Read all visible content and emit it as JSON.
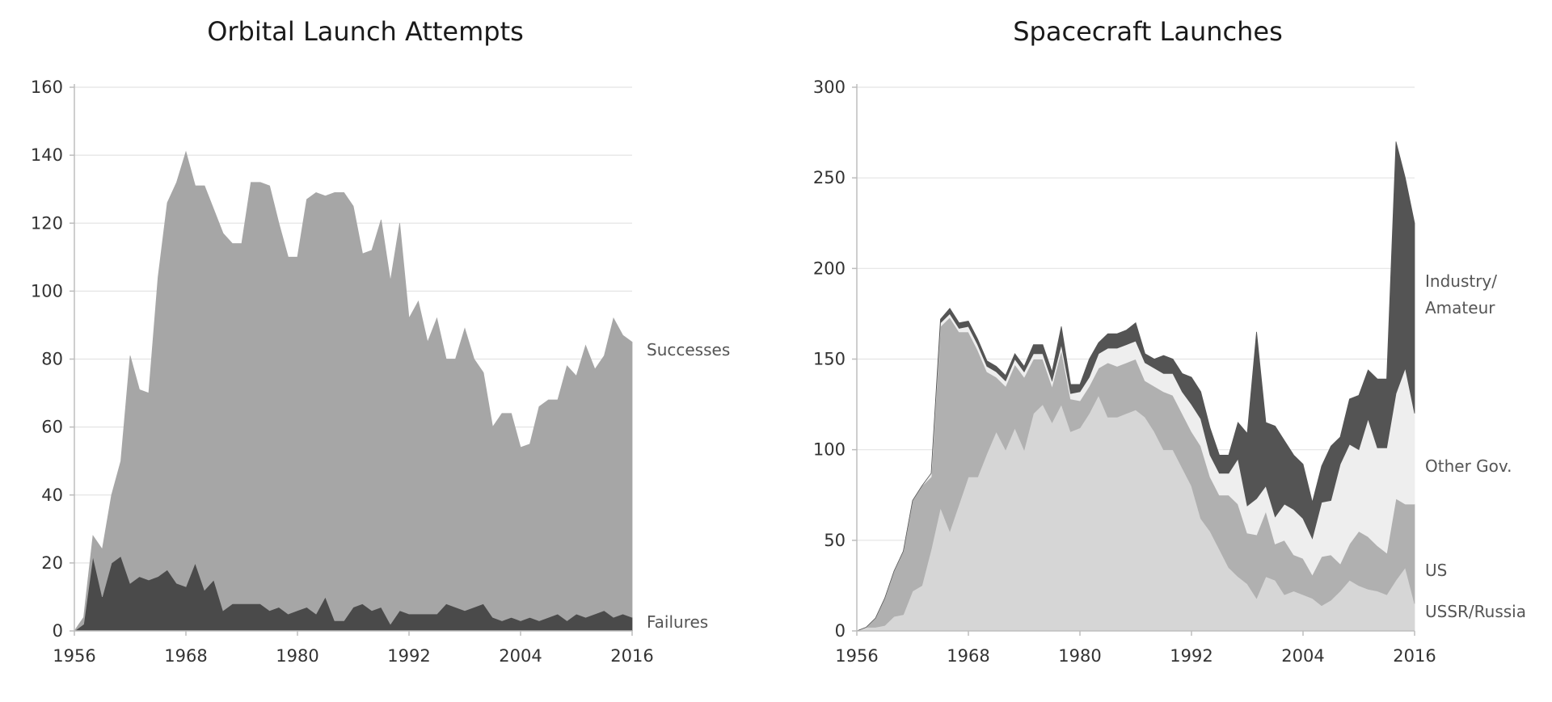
{
  "chart_data": [
    {
      "type": "area",
      "title": "Orbital Launch Attempts",
      "stacked": true,
      "xlim": [
        1956,
        2016
      ],
      "ylim": [
        0,
        160
      ],
      "yticks": [
        0,
        20,
        40,
        60,
        80,
        100,
        120,
        140,
        160
      ],
      "xticks": [
        1956,
        1968,
        1980,
        1992,
        2004,
        2016
      ],
      "grid": true,
      "legend": "series labels at right end of areas",
      "x": [
        1956,
        1957,
        1958,
        1959,
        1960,
        1961,
        1962,
        1963,
        1964,
        1965,
        1966,
        1967,
        1968,
        1969,
        1970,
        1971,
        1972,
        1973,
        1974,
        1975,
        1976,
        1977,
        1978,
        1979,
        1980,
        1981,
        1982,
        1983,
        1984,
        1985,
        1986,
        1987,
        1988,
        1989,
        1990,
        1991,
        1992,
        1993,
        1994,
        1995,
        1996,
        1997,
        1998,
        1999,
        2000,
        2001,
        2002,
        2003,
        2004,
        2005,
        2006,
        2007,
        2008,
        2009,
        2010,
        2011,
        2012,
        2013,
        2014,
        2015,
        2016
      ],
      "series": [
        {
          "name": "Failures",
          "color": "#4a4a4a",
          "values": [
            0,
            2,
            22,
            10,
            20,
            22,
            14,
            16,
            15,
            16,
            18,
            14,
            13,
            20,
            12,
            15,
            6,
            8,
            8,
            8,
            8,
            6,
            7,
            5,
            6,
            7,
            5,
            10,
            3,
            3,
            7,
            8,
            6,
            7,
            2,
            6,
            5,
            5,
            5,
            5,
            8,
            7,
            6,
            7,
            8,
            4,
            3,
            4,
            3,
            4,
            3,
            4,
            5,
            3,
            5,
            4,
            5,
            6,
            4,
            5,
            4
          ]
        },
        {
          "name": "Successes",
          "color": "#a6a6a6",
          "values": [
            0,
            2,
            6,
            14,
            20,
            28,
            67,
            55,
            55,
            88,
            108,
            118,
            128,
            111,
            119,
            109,
            111,
            106,
            106,
            124,
            124,
            125,
            113,
            105,
            104,
            120,
            124,
            118,
            126,
            126,
            118,
            103,
            106,
            114,
            101,
            114,
            87,
            92,
            80,
            87,
            72,
            73,
            83,
            73,
            68,
            56,
            61,
            60,
            51,
            51,
            63,
            64,
            63,
            75,
            70,
            80,
            72,
            75,
            88,
            82,
            81
          ]
        }
      ],
      "labels": {
        "top_series": "Successes",
        "bottom_series": "Failures"
      }
    },
    {
      "type": "area",
      "title": "Spacecraft Launches",
      "stacked": true,
      "xlim": [
        1956,
        2016
      ],
      "ylim": [
        0,
        300
      ],
      "yticks": [
        0,
        50,
        100,
        150,
        200,
        250,
        300
      ],
      "xticks": [
        1956,
        1968,
        1980,
        1992,
        2004,
        2016
      ],
      "grid": true,
      "legend": "series labels at right of chart",
      "x": [
        1956,
        1957,
        1958,
        1959,
        1960,
        1961,
        1962,
        1963,
        1964,
        1965,
        1966,
        1967,
        1968,
        1969,
        1970,
        1971,
        1972,
        1973,
        1974,
        1975,
        1976,
        1977,
        1978,
        1979,
        1980,
        1981,
        1982,
        1983,
        1984,
        1985,
        1986,
        1987,
        1988,
        1989,
        1990,
        1991,
        1992,
        1993,
        1994,
        1995,
        1996,
        1997,
        1998,
        1999,
        2000,
        2001,
        2002,
        2003,
        2004,
        2005,
        2006,
        2007,
        2008,
        2009,
        2010,
        2011,
        2012,
        2013,
        2014,
        2015,
        2016
      ],
      "series": [
        {
          "name": "USSR/Russia",
          "color": "#d6d6d6",
          "values": [
            0,
            2,
            2,
            3,
            8,
            9,
            22,
            25,
            45,
            68,
            55,
            70,
            85,
            85,
            98,
            110,
            100,
            112,
            100,
            120,
            125,
            115,
            125,
            110,
            112,
            120,
            130,
            118,
            118,
            120,
            122,
            118,
            110,
            100,
            100,
            90,
            80,
            62,
            55,
            45,
            35,
            30,
            26,
            18,
            30,
            28,
            20,
            22,
            20,
            18,
            14,
            17,
            22,
            28,
            25,
            23,
            22,
            20,
            28,
            35,
            15
          ]
        },
        {
          "name": "US",
          "color": "#b0b0b0",
          "values": [
            0,
            0,
            5,
            15,
            25,
            35,
            50,
            55,
            40,
            100,
            118,
            95,
            80,
            70,
            45,
            30,
            35,
            35,
            40,
            30,
            25,
            20,
            30,
            18,
            15,
            15,
            15,
            30,
            28,
            28,
            28,
            20,
            25,
            32,
            30,
            30,
            30,
            40,
            30,
            30,
            40,
            40,
            28,
            35,
            36,
            20,
            30,
            20,
            20,
            13,
            27,
            25,
            15,
            20,
            30,
            29,
            25,
            23,
            45,
            35,
            55
          ]
        },
        {
          "name": "Other Gov.",
          "color": "#eeeeee",
          "values": [
            0,
            0,
            0,
            0,
            0,
            0,
            0,
            0,
            2,
            2,
            2,
            2,
            3,
            3,
            3,
            3,
            3,
            3,
            3,
            3,
            3,
            3,
            3,
            3,
            5,
            5,
            8,
            8,
            10,
            10,
            10,
            10,
            10,
            10,
            12,
            12,
            15,
            15,
            12,
            12,
            12,
            25,
            15,
            20,
            14,
            15,
            20,
            25,
            22,
            20,
            30,
            30,
            55,
            55,
            45,
            65,
            54,
            58,
            58,
            75,
            50
          ]
        },
        {
          "name": "Industry/ Amateur",
          "color": "#545454",
          "values": [
            0,
            0,
            0,
            0,
            0,
            0,
            0,
            0,
            0,
            2,
            3,
            3,
            3,
            3,
            3,
            3,
            3,
            3,
            3,
            5,
            5,
            5,
            10,
            5,
            4,
            10,
            6,
            8,
            8,
            8,
            10,
            5,
            5,
            10,
            8,
            10,
            15,
            15,
            15,
            10,
            10,
            20,
            40,
            92,
            35,
            50,
            35,
            30,
            30,
            20,
            20,
            30,
            15,
            25,
            30,
            27,
            38,
            38,
            139,
            105,
            105
          ]
        }
      ],
      "labels": {
        "industry_line1": "Industry/",
        "industry_line2": "Amateur",
        "other_gov": "Other Gov.",
        "us": "US",
        "ussr": "USSR/Russia"
      }
    }
  ]
}
